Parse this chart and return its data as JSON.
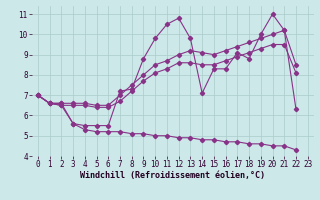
{
  "bg_color": "#cce8e8",
  "grid_color": "#aacccc",
  "line_color": "#883388",
  "xlabel": "Windchill (Refroidissement éolien,°C)",
  "tick_fontsize": 5.5,
  "xlabel_fontsize": 6.0,
  "xlim": [
    -0.5,
    23.5
  ],
  "ylim": [
    4,
    11.4
  ],
  "yticks": [
    4,
    5,
    6,
    7,
    8,
    9,
    10,
    11
  ],
  "xticks": [
    0,
    1,
    2,
    3,
    4,
    5,
    6,
    7,
    8,
    9,
    10,
    11,
    12,
    13,
    14,
    15,
    16,
    17,
    18,
    19,
    20,
    21,
    22,
    23
  ],
  "s1_x": [
    0,
    1,
    2,
    3,
    4,
    5,
    6,
    7,
    8,
    9,
    10,
    11,
    12,
    13,
    14,
    15,
    16,
    17,
    18,
    19,
    20,
    21,
    22
  ],
  "s1_y": [
    7.0,
    6.6,
    6.6,
    5.6,
    5.5,
    5.5,
    5.5,
    7.2,
    7.3,
    8.8,
    9.8,
    10.5,
    10.8,
    9.8,
    7.1,
    8.3,
    8.3,
    9.1,
    8.8,
    10.0,
    11.0,
    10.2,
    6.3
  ],
  "s2_x": [
    0,
    1,
    2,
    3,
    4,
    5,
    6,
    7,
    8,
    9,
    10,
    11,
    12,
    13,
    14,
    15,
    16,
    17,
    18,
    19,
    20,
    21,
    22
  ],
  "s2_y": [
    7.0,
    6.6,
    6.6,
    6.6,
    6.6,
    6.5,
    6.5,
    7.0,
    7.5,
    8.0,
    8.5,
    8.7,
    9.0,
    9.2,
    9.1,
    9.0,
    9.2,
    9.4,
    9.6,
    9.8,
    10.0,
    10.2,
    8.5
  ],
  "s3_x": [
    0,
    1,
    2,
    3,
    4,
    5,
    6,
    7,
    8,
    9,
    10,
    11,
    12,
    13,
    14,
    15,
    16,
    17,
    18,
    19,
    20,
    21,
    22
  ],
  "s3_y": [
    7.0,
    6.6,
    6.5,
    6.5,
    6.5,
    6.4,
    6.4,
    6.7,
    7.2,
    7.7,
    8.1,
    8.3,
    8.6,
    8.6,
    8.5,
    8.5,
    8.7,
    8.9,
    9.1,
    9.3,
    9.5,
    9.5,
    8.1
  ],
  "s4_x": [
    0,
    1,
    2,
    3,
    4,
    5,
    6,
    7,
    8,
    9,
    10,
    11,
    12,
    13,
    14,
    15,
    16,
    17,
    18,
    19,
    20,
    21,
    22
  ],
  "s4_y": [
    7.0,
    6.6,
    6.5,
    5.6,
    5.3,
    5.2,
    5.2,
    5.2,
    5.1,
    5.1,
    5.0,
    5.0,
    4.9,
    4.9,
    4.8,
    4.8,
    4.7,
    4.7,
    4.6,
    4.6,
    4.5,
    4.5,
    4.3
  ]
}
